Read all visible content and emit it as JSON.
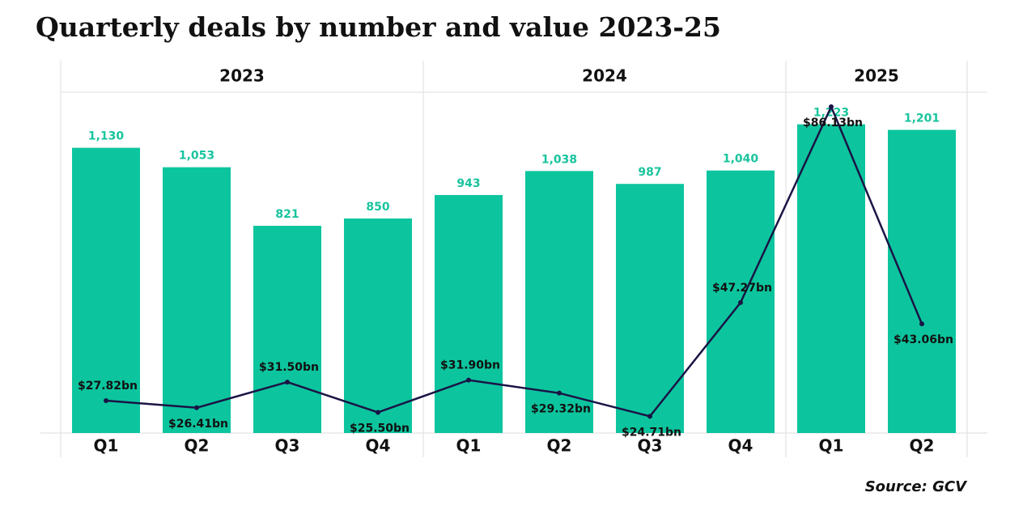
{
  "chart_data": {
    "type": "bar",
    "title": "Quarterly deals by number and value 2023-25",
    "groups": [
      {
        "label": "2023",
        "categories": [
          "Q1",
          "Q2",
          "Q3",
          "Q4"
        ]
      },
      {
        "label": "2024",
        "categories": [
          "Q1",
          "Q2",
          "Q3",
          "Q4"
        ]
      },
      {
        "label": "2025",
        "categories": [
          "Q1",
          "Q2"
        ]
      }
    ],
    "series": [
      {
        "type": "bar",
        "color": "#0cc59e",
        "values": [
          1130,
          1053,
          821,
          850,
          943,
          1038,
          987,
          1040,
          1223,
          1201
        ],
        "value_labels": [
          "1,130",
          "1,053",
          "821",
          "850",
          "943",
          "1,038",
          "987",
          "1,040",
          "1,223",
          "1,201"
        ]
      },
      {
        "type": "line",
        "axis": "y2",
        "color": "#1a1446",
        "values": [
          27.82,
          26.41,
          31.5,
          25.5,
          31.9,
          29.32,
          24.71,
          47.27,
          86.13,
          43.06
        ],
        "value_labels": [
          "$27.82bn",
          "$26.41bn",
          "$31.50bn",
          "$25.50bn",
          "$31.90bn",
          "$29.32bn",
          "$24.71bn",
          "$47.27bn",
          "$86.13bn",
          "$43.06bn"
        ]
      }
    ],
    "ylim": [
      0,
      1350
    ],
    "y2lim": [
      21.4,
      89.0
    ],
    "source": "Source: GCV"
  }
}
